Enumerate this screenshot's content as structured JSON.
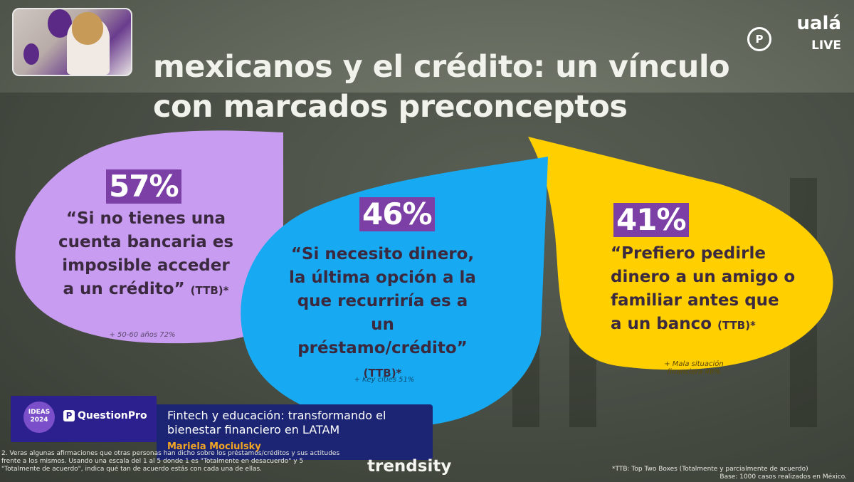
{
  "slide": {
    "title": "Los mexicanos y el crédito: un vínculo con marcados preconceptos",
    "title_line1": "mexicanos y el crédito: un vínculo",
    "title_line2": "con marcados preconceptos"
  },
  "bubbles": [
    {
      "stat": "57%",
      "quote": "“Si no tienes una cuenta bancaria es imposible acceder a un crédito”",
      "ttb": "(TTB)*",
      "note": "+ 50-60 años 72%",
      "color": "#c89cf0"
    },
    {
      "stat": "46%",
      "quote": "“Si necesito dinero, la última opción a la que recurriría es a un préstamo/crédito”",
      "ttb": "(TTB)*",
      "note": "+ Key cities 51%",
      "color": "#17aaf2"
    },
    {
      "stat": "41%",
      "quote": "“Prefiero pedirle dinero a un amigo o familiar antes que a un banco",
      "ttb": "(TTB)*",
      "note": "+ Mala situación financiera 48%",
      "color": "#ffcf00"
    }
  ],
  "brand": {
    "logo": "ualá",
    "live": "LIVE",
    "badge": "P"
  },
  "lower_third": {
    "event_badge": "IDEAS 2024",
    "sponsor": "QuestionPro",
    "talk_title": "Fintech y educación: transformando el bienestar financiero en LATAM",
    "speaker": "Mariela Mociulsky"
  },
  "footer": {
    "trendsity": "trendsity",
    "left_note": "2. Veras algunas afirmaciones que otras personas han dicho sobre los préstamos/créditos y sus actitudes frente a los mismos. Usando una escala del 1 al 5 donde 1 es \"Totalmente en desacuerdo\" y 5 \"Totalmente de acuerdo\", indica qué tan de acuerdo estás con cada una de ellas.",
    "right_note_1": "*TTB: Top Two Boxes (Totalmente y parcialmente de acuerdo)",
    "right_note_2": "Base: 1000 casos realizados en México."
  },
  "colors": {
    "accent": "#7b3fa6",
    "lilac": "#c89cf0",
    "blue": "#17aaf2",
    "yellow": "#ffcf00"
  }
}
